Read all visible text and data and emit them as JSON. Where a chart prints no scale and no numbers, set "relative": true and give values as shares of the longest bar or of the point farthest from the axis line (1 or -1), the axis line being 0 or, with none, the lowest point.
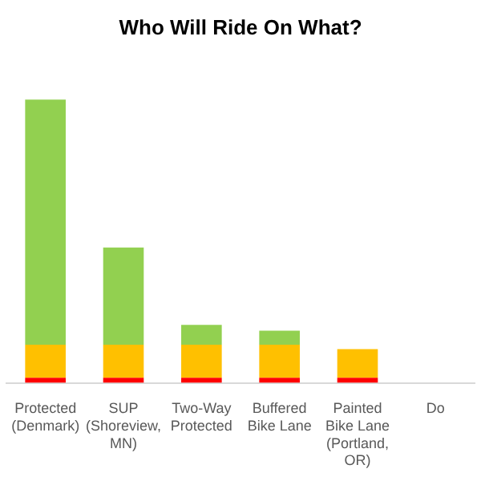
{
  "chart_data": {
    "type": "bar",
    "title": "Who Will Ride On What?",
    "relative": true,
    "stacked": true,
    "legend": false,
    "categories": [
      "Protected (Denmark)",
      "SUP (Shoreview, MN)",
      "Two-Way Protected",
      "Buffered Bike Lane",
      "Painted Bike Lane (Portland, OR)",
      "Do"
    ],
    "series": [
      {
        "color": "#ff0000",
        "values": [
          0.018,
          0.018,
          0.018,
          0.018,
          0.018,
          null
        ]
      },
      {
        "color": "#ffc000",
        "values": [
          0.117,
          0.117,
          0.117,
          0.117,
          0.101,
          null
        ]
      },
      {
        "color": "#92d050",
        "values": [
          0.865,
          0.343,
          0.07,
          0.049,
          null,
          null
        ]
      }
    ]
  }
}
